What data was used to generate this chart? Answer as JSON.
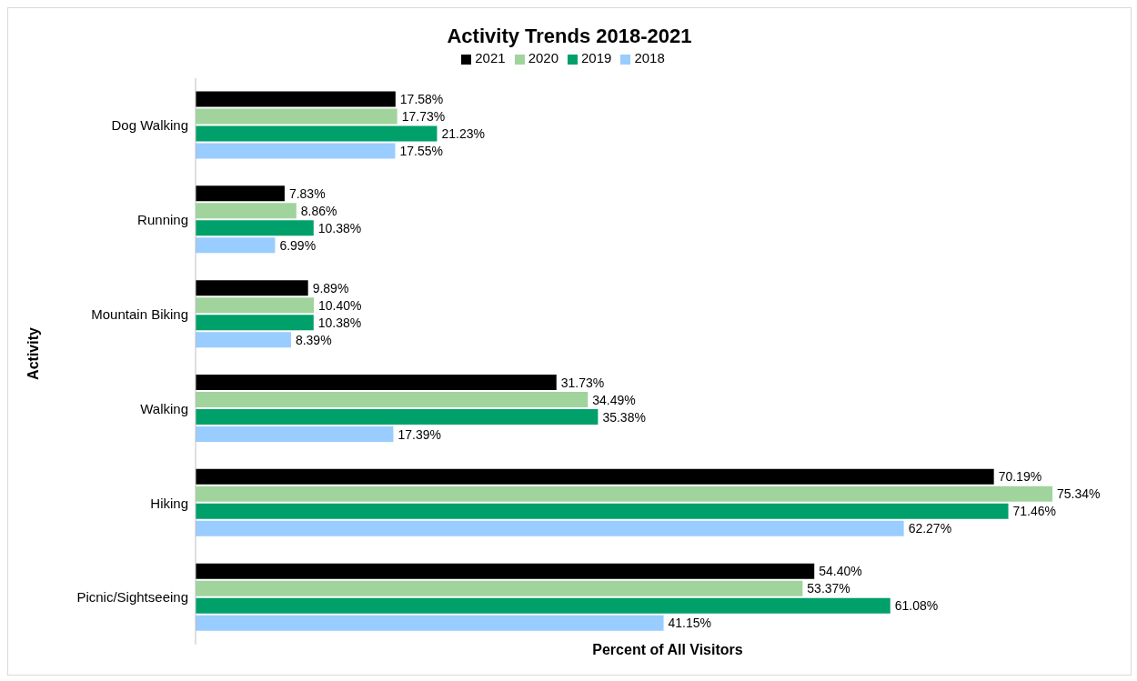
{
  "chart_data": {
    "type": "bar",
    "orientation": "horizontal",
    "title": "Activity Trends 2018-2021",
    "xlabel": "Percent of All Visitors",
    "ylabel": "Activity",
    "categories": [
      "Dog Walking",
      "Running",
      "Mountain Biking",
      "Walking",
      "Hiking",
      "Picnic/Sightseeing"
    ],
    "series": [
      {
        "name": "2021",
        "color": "#000000",
        "values": [
          17.58,
          7.83,
          9.89,
          31.73,
          70.19,
          54.4
        ],
        "value_labels": [
          "17.58%",
          "7.83%",
          "9.89%",
          "31.73%",
          "70.19%",
          "54.40%"
        ]
      },
      {
        "name": "2020",
        "color": "#a0d49c",
        "values": [
          17.73,
          8.86,
          10.4,
          34.49,
          75.34,
          53.37
        ],
        "value_labels": [
          "17.73%",
          "8.86%",
          "10.40%",
          "34.49%",
          "75.34%",
          "53.37%"
        ]
      },
      {
        "name": "2019",
        "color": "#00a06a",
        "values": [
          21.23,
          10.38,
          10.38,
          35.38,
          71.46,
          61.08
        ],
        "value_labels": [
          "21.23%",
          "10.38%",
          "10.38%",
          "35.38%",
          "71.46%",
          "61.08%"
        ]
      },
      {
        "name": "2018",
        "color": "#99ccff",
        "values": [
          17.55,
          6.99,
          8.39,
          17.39,
          62.27,
          41.15
        ],
        "value_labels": [
          "17.55%",
          "6.99%",
          "8.39%",
          "17.39%",
          "62.27%",
          "41.15%"
        ]
      }
    ],
    "legend": "top",
    "grid": false,
    "tick_labels": "y"
  }
}
